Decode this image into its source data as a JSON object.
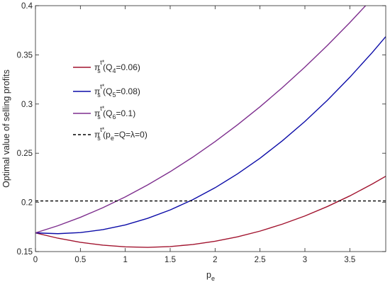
{
  "chart_data": {
    "type": "line",
    "xlabel": "p",
    "xlabel_sub": "e",
    "ylabel": "Optimal value of selling profits",
    "xlim": [
      0,
      3.9
    ],
    "ylim": [
      0.15,
      0.4
    ],
    "xticks": [
      0,
      0.5,
      1,
      1.5,
      2,
      2.5,
      3,
      3.5
    ],
    "xtick_labels": [
      "0",
      "0.5",
      "1",
      "1.5",
      "2",
      "2.5",
      "3",
      "3.5"
    ],
    "yticks": [
      0.15,
      0.2,
      0.25,
      0.3,
      0.35,
      0.4
    ],
    "ytick_labels": [
      "0.15",
      "0.2",
      "0.25",
      "0.3",
      "0.35",
      "0.4"
    ],
    "grid": false,
    "legend_position": "upper-left",
    "x": [
      0,
      0.25,
      0.5,
      0.75,
      1,
      1.25,
      1.5,
      1.75,
      2,
      2.25,
      2.5,
      2.75,
      3,
      3.25,
      3.5,
      3.75,
      3.9
    ],
    "series": [
      {
        "name": "π (Q=0.06)",
        "legend": {
          "base": "π",
          "sup": "t*",
          "sub": "s",
          "paren": [
            {
              "t": "(Q"
            },
            {
              "t": "4",
              "sub": true
            },
            {
              "t": "=0.06)"
            }
          ]
        },
        "color": "#a2142f",
        "style": "solid",
        "values": [
          0.169,
          0.1636,
          0.1594,
          0.1565,
          0.1548,
          0.1543,
          0.1551,
          0.1572,
          0.1605,
          0.165,
          0.1708,
          0.1779,
          0.1862,
          0.1958,
          0.2066,
          0.2187,
          0.2266
        ]
      },
      {
        "name": "π (Q=0.08)",
        "legend": {
          "base": "π",
          "sup": "t*",
          "sub": "s",
          "paren": [
            {
              "t": "(Q"
            },
            {
              "t": "5",
              "sub": true
            },
            {
              "t": "=0.08)"
            }
          ]
        },
        "color": "#0c0ca8",
        "style": "solid",
        "values": [
          0.169,
          0.1682,
          0.1693,
          0.1723,
          0.1771,
          0.1838,
          0.1923,
          0.2027,
          0.2149,
          0.229,
          0.2449,
          0.2627,
          0.2823,
          0.3038,
          0.3272,
          0.3524,
          0.3685
        ]
      },
      {
        "name": "π (Q=0.1)",
        "legend": {
          "base": "π",
          "sup": "t*",
          "sub": "s",
          "paren": [
            {
              "t": "(Q"
            },
            {
              "t": "6",
              "sub": true
            },
            {
              "t": "=0.1)"
            }
          ]
        },
        "color": "#7e2f8e",
        "style": "solid",
        "values": [
          0.169,
          0.1763,
          0.1848,
          0.1946,
          0.2056,
          0.2178,
          0.2312,
          0.2459,
          0.2618,
          0.2789,
          0.2972,
          0.3168,
          0.3376,
          0.3596,
          0.3828,
          0.4073,
          0.4226
        ]
      },
      {
        "name": "π (p=Q=λ=0)",
        "legend": {
          "base": "π",
          "sup": "t*",
          "sub": "s",
          "paren": [
            {
              "t": "(p"
            },
            {
              "t": "e",
              "sub": true
            },
            {
              "t": "=Q=λ=0)"
            }
          ]
        },
        "color": "#000000",
        "style": "dashed",
        "values": [
          0.2015,
          0.2015,
          0.2015,
          0.2015,
          0.2015,
          0.2015,
          0.2015,
          0.2015,
          0.2015,
          0.2015,
          0.2015,
          0.2015,
          0.2015,
          0.2015,
          0.2015,
          0.2015,
          0.2015
        ]
      }
    ]
  }
}
